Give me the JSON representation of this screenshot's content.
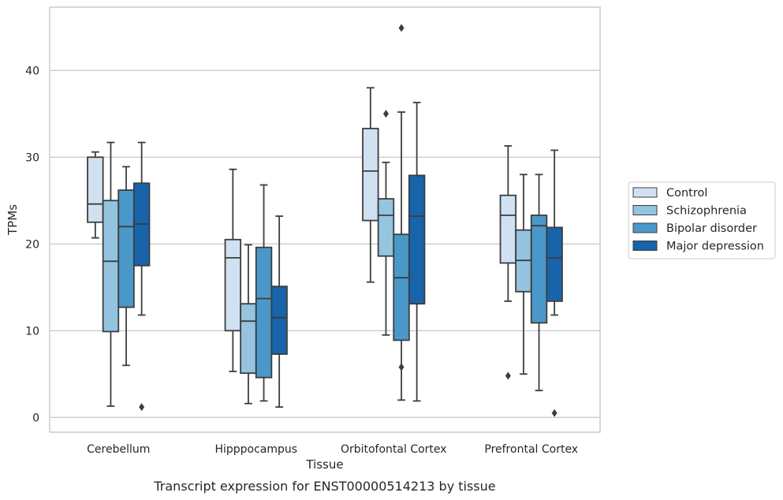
{
  "caption": "Transcript expression for ENST00000514213 by tissue",
  "chart_data": {
    "type": "boxplot",
    "xlabel": "Tissue",
    "ylabel": "TPMs",
    "ylim": [
      -1.7,
      47.3
    ],
    "yticks": [
      0,
      10,
      20,
      30,
      40
    ],
    "grid": "horizontal",
    "legend_position": "right",
    "categories": [
      "Cerebellum",
      "Hipppocampus",
      "Orbitofontal Cortex",
      "Prefrontal Cortex"
    ],
    "series": [
      {
        "name": "Control",
        "color": "#d0e1f2",
        "boxes": [
          {
            "whislo": 20.7,
            "q1": 22.5,
            "med": 24.6,
            "q3": 30.0,
            "whishi": 30.6,
            "fliers": []
          },
          {
            "whislo": 5.3,
            "q1": 10.0,
            "med": 18.4,
            "q3": 20.5,
            "whishi": 28.6,
            "fliers": []
          },
          {
            "whislo": 15.6,
            "q1": 22.7,
            "med": 28.4,
            "q3": 33.3,
            "whishi": 38.0,
            "fliers": []
          },
          {
            "whislo": 13.4,
            "q1": 17.8,
            "med": 23.3,
            "q3": 25.6,
            "whishi": 31.3,
            "fliers": [
              4.8
            ]
          }
        ]
      },
      {
        "name": "Schizophrenia",
        "color": "#94c4df",
        "boxes": [
          {
            "whislo": 1.3,
            "q1": 9.9,
            "med": 18.0,
            "q3": 25.0,
            "whishi": 31.7,
            "fliers": []
          },
          {
            "whislo": 1.6,
            "q1": 5.1,
            "med": 11.1,
            "q3": 13.1,
            "whishi": 19.9,
            "fliers": []
          },
          {
            "whislo": 9.5,
            "q1": 18.6,
            "med": 23.3,
            "q3": 25.2,
            "whishi": 29.4,
            "fliers": [
              35.0
            ]
          },
          {
            "whislo": 5.0,
            "q1": 14.5,
            "med": 18.1,
            "q3": 21.6,
            "whishi": 28.0,
            "fliers": []
          }
        ]
      },
      {
        "name": "Bipolar disorder",
        "color": "#4a98c9",
        "boxes": [
          {
            "whislo": 6.0,
            "q1": 12.7,
            "med": 22.0,
            "q3": 26.2,
            "whishi": 28.9,
            "fliers": []
          },
          {
            "whislo": 1.9,
            "q1": 4.6,
            "med": 13.7,
            "q3": 19.6,
            "whishi": 26.8,
            "fliers": []
          },
          {
            "whislo": 2.0,
            "q1": 8.9,
            "med": 16.1,
            "q3": 21.1,
            "whishi": 35.2,
            "fliers": [
              5.8,
              44.9
            ]
          },
          {
            "whislo": 3.1,
            "q1": 10.9,
            "med": 22.1,
            "q3": 23.3,
            "whishi": 28.0,
            "fliers": []
          }
        ]
      },
      {
        "name": "Major depression",
        "color": "#1764ab",
        "boxes": [
          {
            "whislo": 11.8,
            "q1": 17.5,
            "med": 22.3,
            "q3": 27.0,
            "whishi": 31.7,
            "fliers": [
              1.2
            ]
          },
          {
            "whislo": 1.2,
            "q1": 7.3,
            "med": 11.5,
            "q3": 15.1,
            "whishi": 23.2,
            "fliers": []
          },
          {
            "whislo": 1.9,
            "q1": 13.1,
            "med": 23.2,
            "q3": 27.9,
            "whishi": 36.3,
            "fliers": []
          },
          {
            "whislo": 11.8,
            "q1": 13.4,
            "med": 18.4,
            "q3": 21.9,
            "whishi": 30.8,
            "fliers": [
              0.5
            ]
          }
        ]
      }
    ]
  }
}
